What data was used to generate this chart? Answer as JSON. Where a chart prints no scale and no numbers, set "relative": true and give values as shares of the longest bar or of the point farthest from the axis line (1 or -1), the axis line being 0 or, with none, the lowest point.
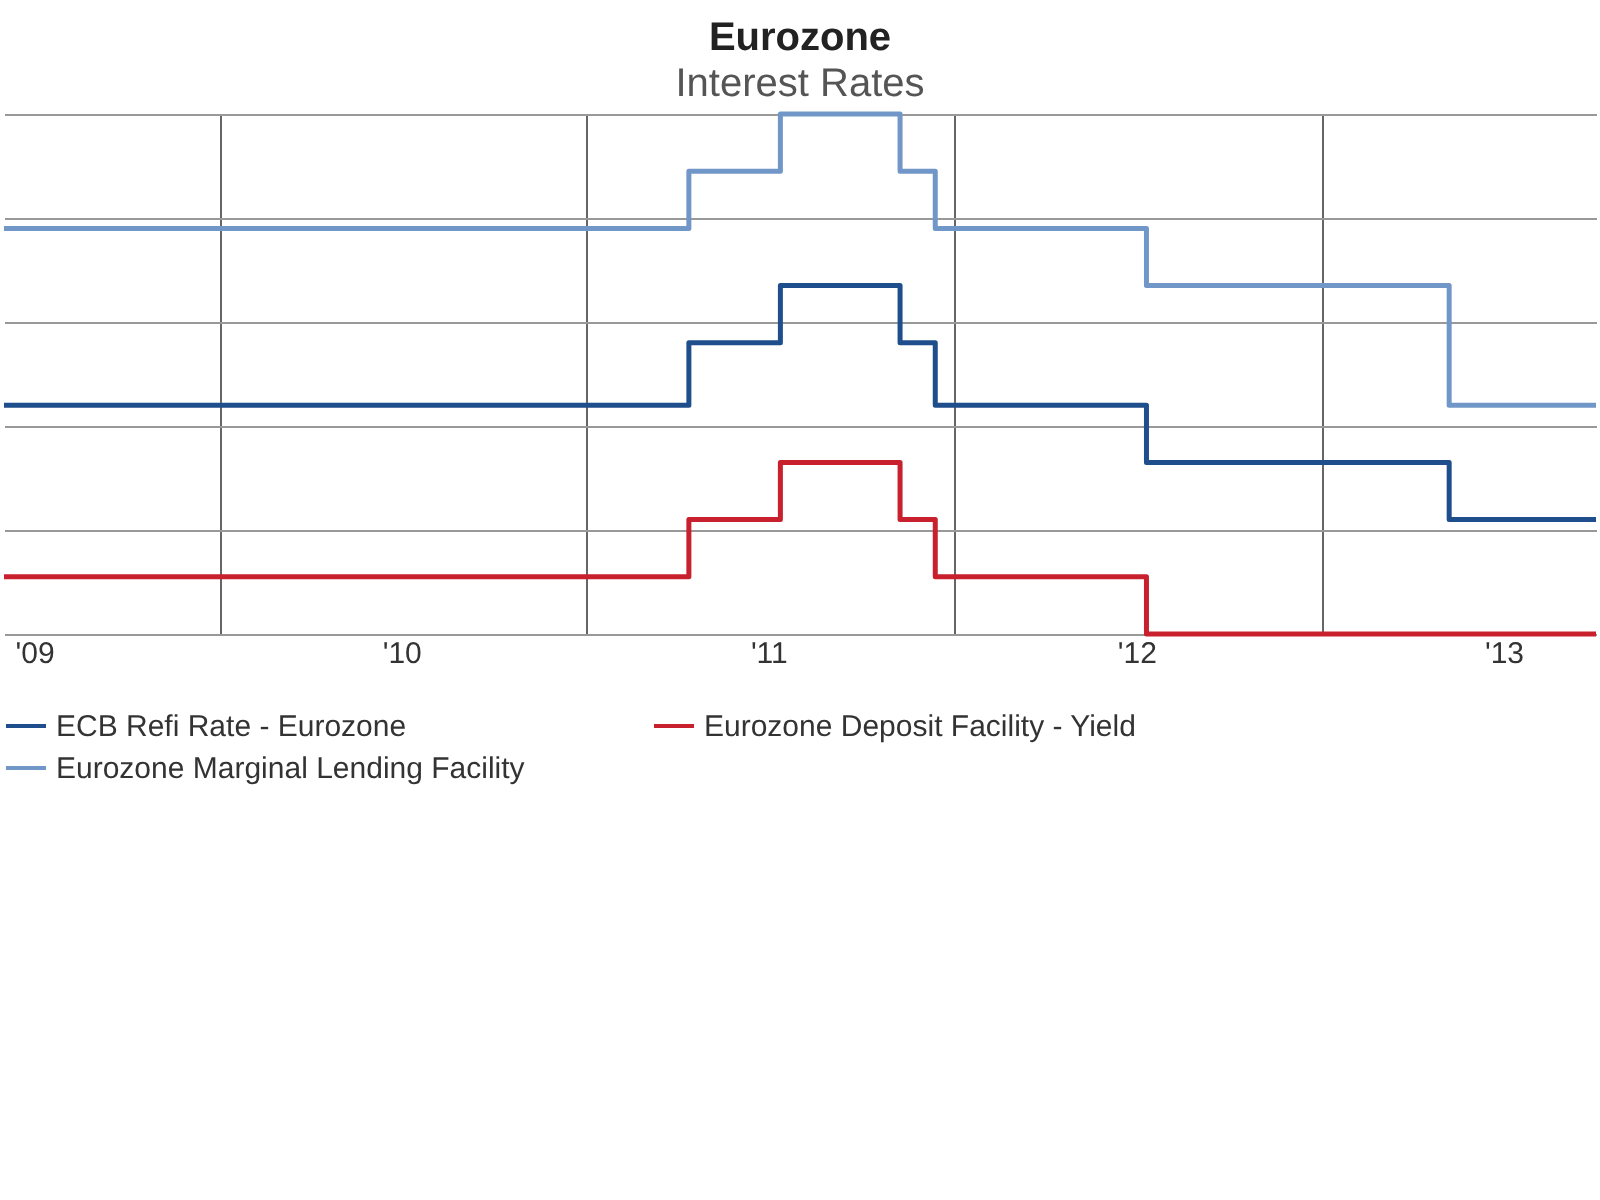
{
  "chart_data": {
    "type": "step",
    "title": "Eurozone",
    "subtitle": "Interest Rates",
    "relative": true,
    "x": [
      "2009-06-01",
      "2011-04-13",
      "2011-07-13",
      "2011-11-09",
      "2011-12-14",
      "2012-07-11",
      "2013-05-08",
      "2013-10-01"
    ],
    "xlim": [
      "2009-06-01",
      "2013-10-01"
    ],
    "xticks": [
      {
        "value": "2009-07-01",
        "label": "'09"
      },
      {
        "value": "2010-01-01",
        "label": null
      },
      {
        "value": "2010-07-01",
        "label": "'10"
      },
      {
        "value": "2011-01-01",
        "label": null
      },
      {
        "value": "2011-07-01",
        "label": "'11"
      },
      {
        "value": "2012-01-01",
        "label": null
      },
      {
        "value": "2012-07-01",
        "label": "'12"
      },
      {
        "value": "2013-01-01",
        "label": null
      },
      {
        "value": "2013-07-01",
        "label": "'13"
      }
    ],
    "series": [
      {
        "name": "ECB Refi Rate - Eurozone",
        "color": "#1f4e8c",
        "values": [
          0.44,
          0.56,
          0.67,
          0.56,
          0.44,
          0.33,
          0.22,
          0.22
        ]
      },
      {
        "name": "Eurozone Deposit Facility - Yield",
        "color": "#c8202c",
        "values": [
          0.11,
          0.22,
          0.33,
          0.22,
          0.11,
          0,
          0,
          0
        ]
      },
      {
        "name": "Eurozone Marginal Lending Facility",
        "color": "#7197c8",
        "values": [
          0.78,
          0.89,
          1,
          0.89,
          0.78,
          0.67,
          0.44,
          0.44
        ]
      }
    ],
    "grid": true,
    "legend": "bottom"
  }
}
